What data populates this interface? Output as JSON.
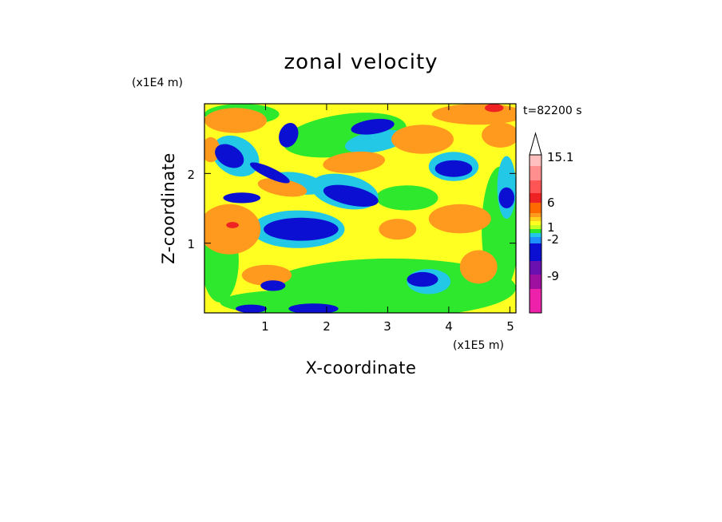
{
  "chart_data": {
    "type": "heatmap",
    "title": "zonal velocity",
    "xlabel": "X-coordinate",
    "ylabel": "Z-coordinate",
    "x_scale_label": "(x1E5 m)",
    "y_scale_label": "(x1E4 m)",
    "time_label": "t=82200 s",
    "xlim": [
      0,
      5.1
    ],
    "ylim": [
      0,
      3.0
    ],
    "x_ticks": [
      "1",
      "2",
      "3",
      "4",
      "5"
    ],
    "y_ticks": [
      "1",
      "2"
    ],
    "colorbar": {
      "labels": [
        "15.1",
        "6",
        "1",
        "-2",
        "-9"
      ],
      "levels": [
        -15,
        -12,
        -9,
        -6,
        -3,
        -2,
        -1,
        0,
        1,
        2,
        3,
        6,
        9,
        12,
        15.1
      ]
    },
    "colors": {
      "dark_blue": "#0a0fd2",
      "cyan": "#22c8e6",
      "green": "#2de82d",
      "yellow": "#ffff22",
      "orange": "#ff9a1e",
      "red": "#ee2222",
      "magenta": "#ee22aa"
    }
  }
}
